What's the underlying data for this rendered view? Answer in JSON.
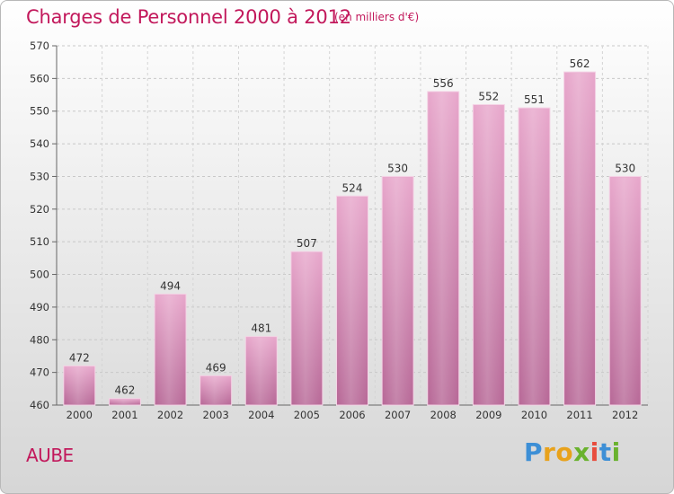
{
  "header": {
    "title": "Charges de Personnel 2000 à 2012",
    "subtitle": "(en milliers d'€)"
  },
  "footer": {
    "region": "AUBE",
    "logo": "Proxiti"
  },
  "colors": {
    "accent": "#c2185b",
    "bar_top": "#e8a8cc",
    "bar_bottom": "#b86a98"
  },
  "chart_data": {
    "type": "bar",
    "title": "Charges de Personnel 2000 à 2012",
    "subtitle": "(en milliers d'€)",
    "categories": [
      "2000",
      "2001",
      "2002",
      "2003",
      "2004",
      "2005",
      "2006",
      "2007",
      "2008",
      "2009",
      "2010",
      "2011",
      "2012"
    ],
    "values": [
      472,
      462,
      494,
      469,
      481,
      507,
      524,
      530,
      556,
      552,
      551,
      562,
      530
    ],
    "ylim": [
      460,
      570
    ],
    "yticks": [
      460,
      470,
      480,
      490,
      500,
      510,
      520,
      530,
      540,
      550,
      560,
      570
    ],
    "grid": true,
    "legend": "none"
  }
}
